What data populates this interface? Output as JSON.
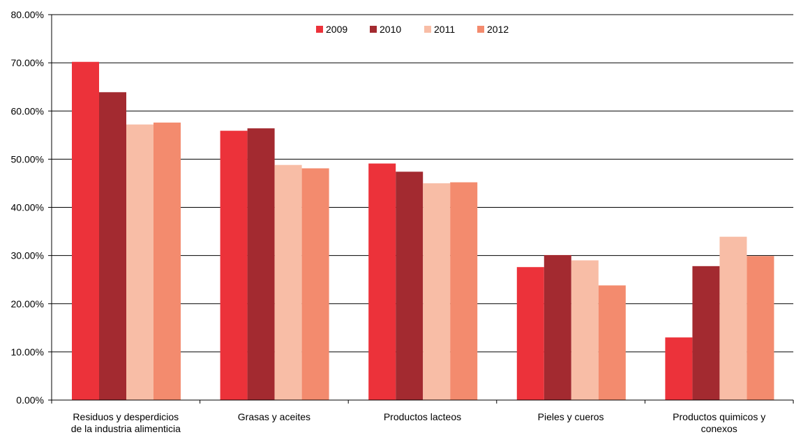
{
  "chart_data": {
    "type": "bar",
    "title": "",
    "xlabel": "",
    "ylabel": "",
    "ylim": [
      0,
      80
    ],
    "y_ticks": [
      0,
      10,
      20,
      30,
      40,
      50,
      60,
      70,
      80
    ],
    "y_tick_labels": [
      "0.00%",
      "10.00%",
      "20.00%",
      "30.00%",
      "40.00%",
      "50.00%",
      "60.00%",
      "70.00%",
      "80.00%"
    ],
    "grid": true,
    "legend_position": "top-center",
    "categories": [
      [
        "Residuos y desperdicios",
        "de la industria alimenticia"
      ],
      [
        "Grasas y aceites"
      ],
      [
        "Productos lacteos"
      ],
      [
        "Pieles y cueros"
      ],
      [
        "Productos quimicos y",
        "conexos"
      ]
    ],
    "series": [
      {
        "name": "2009",
        "color": "#ec323a",
        "values": [
          70.2,
          55.9,
          49.1,
          27.6,
          13.0
        ]
      },
      {
        "name": "2010",
        "color": "#a32a30",
        "values": [
          63.9,
          56.4,
          47.4,
          30.1,
          27.8
        ]
      },
      {
        "name": "2011",
        "color": "#f8bda6",
        "values": [
          57.2,
          48.8,
          45.0,
          29.0,
          33.9
        ]
      },
      {
        "name": "2012",
        "color": "#f38b6e",
        "values": [
          57.6,
          48.1,
          45.2,
          23.8,
          29.9
        ]
      }
    ]
  }
}
